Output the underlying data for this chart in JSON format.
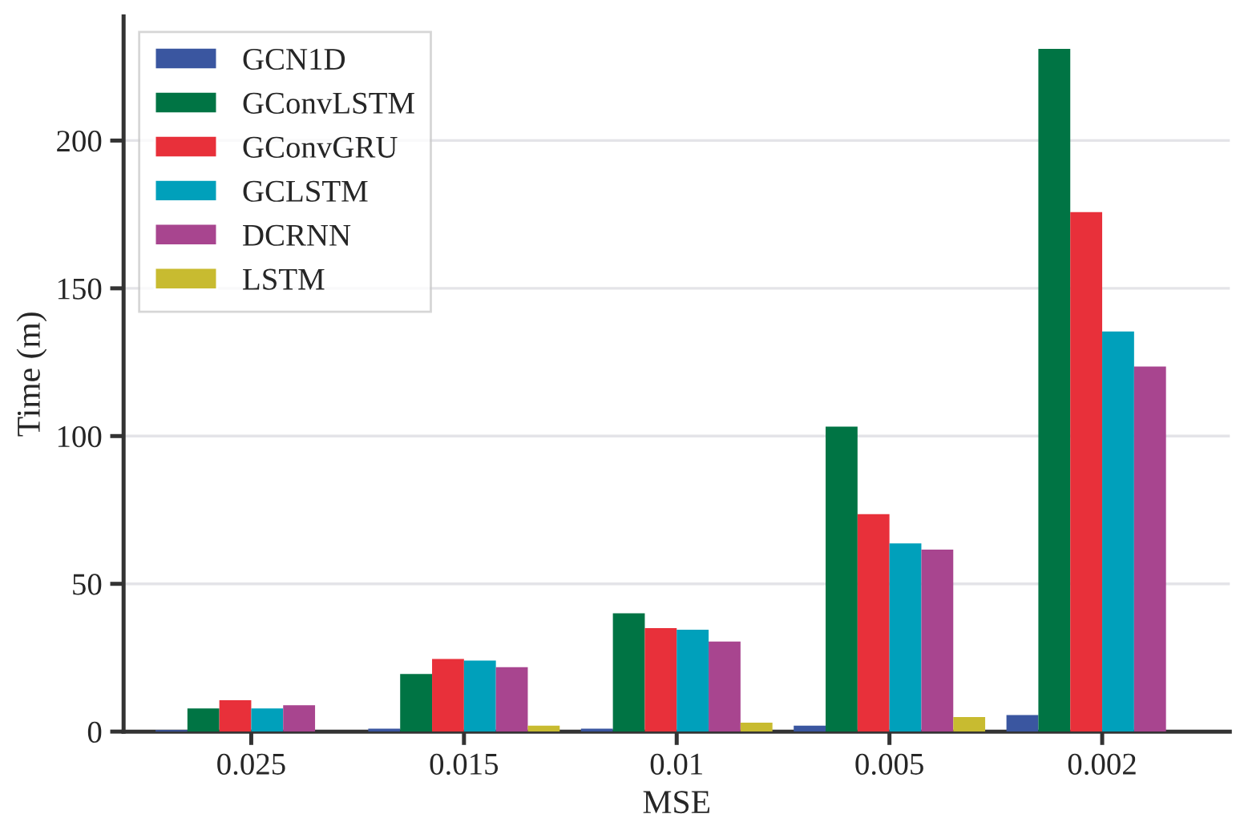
{
  "chart_data": {
    "type": "bar",
    "xlabel": "MSE",
    "ylabel": "Time (m)",
    "categories": [
      "0.025",
      "0.015",
      "0.01",
      "0.005",
      "0.002"
    ],
    "series": [
      {
        "name": "GCN1D",
        "color": "#3a56a0",
        "values": [
          0.5,
          1,
          1,
          2,
          5.6
        ]
      },
      {
        "name": "GConvLSTM",
        "color": "#007444",
        "values": [
          7.8,
          19.5,
          40,
          103.2,
          231
        ]
      },
      {
        "name": "GConvGRU",
        "color": "#e8303a",
        "values": [
          10.6,
          24.6,
          35,
          73.6,
          175.8
        ]
      },
      {
        "name": "GCLSTM",
        "color": "#00a0bb",
        "values": [
          7.8,
          24,
          34.5,
          63.7,
          135.4
        ]
      },
      {
        "name": "DCRNN",
        "color": "#a8458f",
        "values": [
          8.9,
          21.8,
          30.5,
          61.6,
          123.5
        ]
      },
      {
        "name": "LSTM",
        "color": "#c8bb30",
        "values": [
          null,
          2,
          3,
          4.9,
          null
        ]
      }
    ],
    "ylim": [
      0,
      242
    ],
    "yticks": [
      0,
      50,
      100,
      150,
      200
    ],
    "grid": "y",
    "legend": "top left"
  }
}
